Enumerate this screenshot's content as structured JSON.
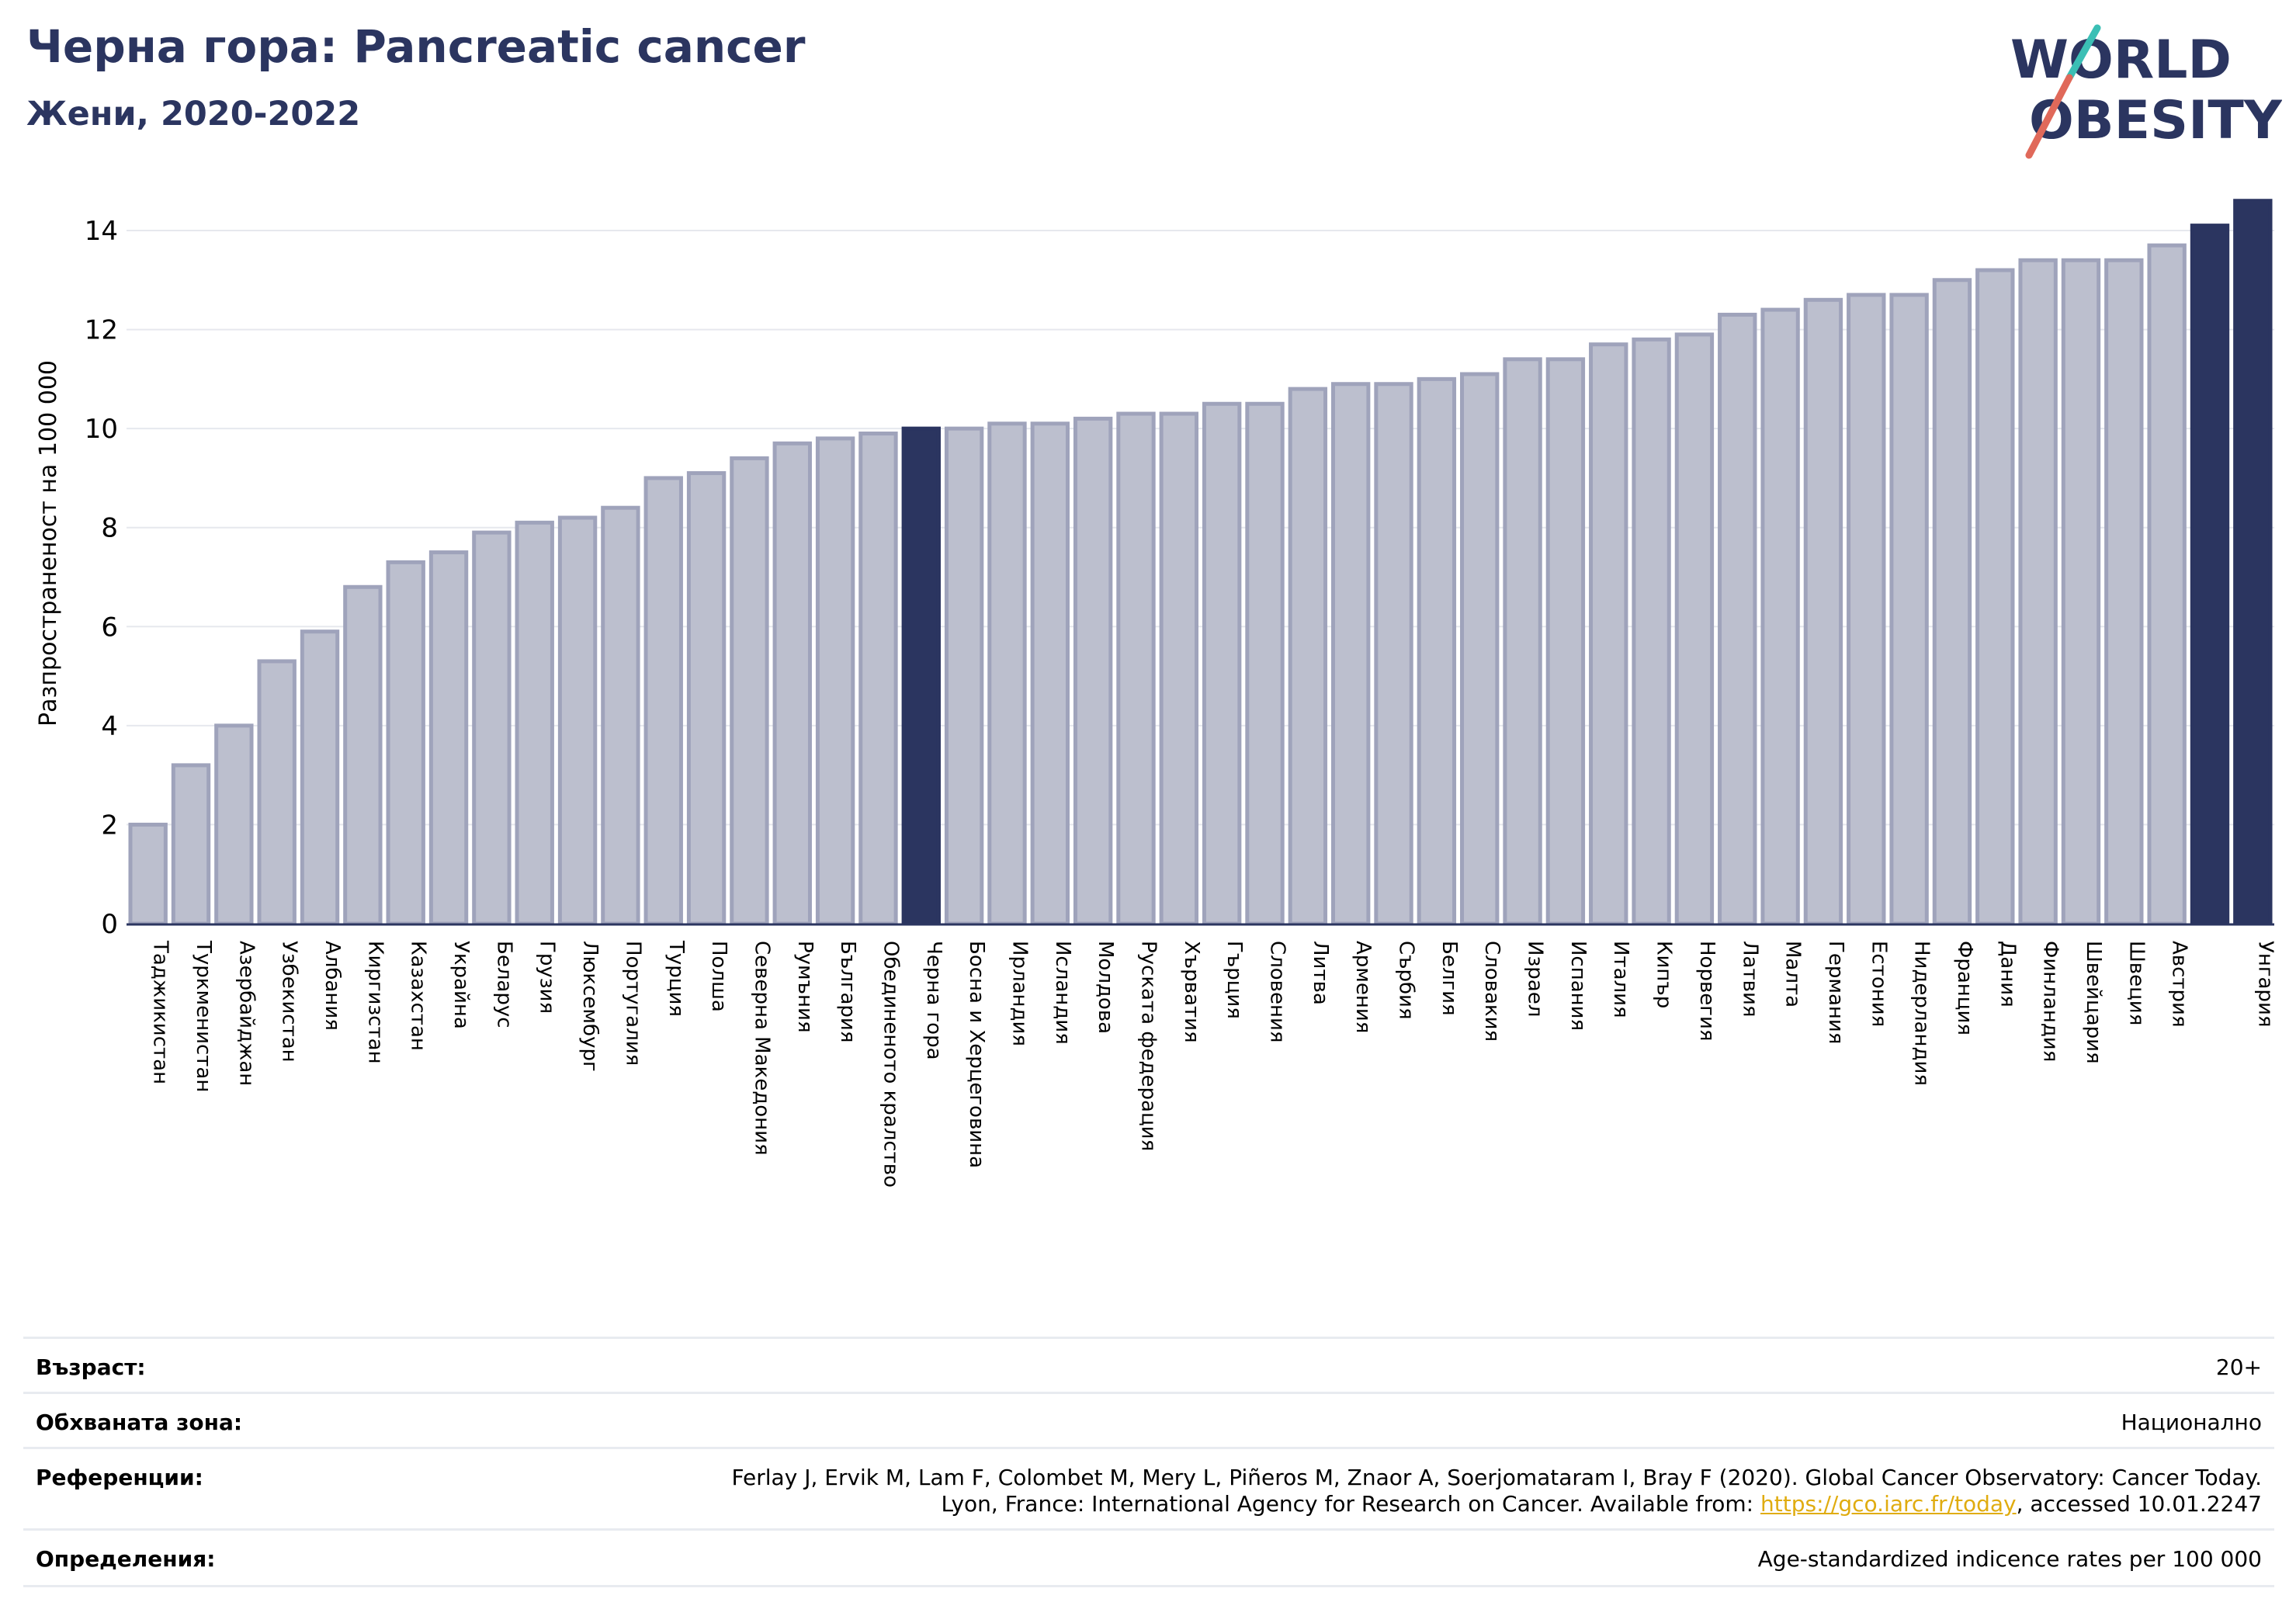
{
  "header": {
    "title": "Черна гора: Pancreatic cancer",
    "subtitle": "Жени, 2020-2022"
  },
  "logo": {
    "line1": "WORLD",
    "line2": "OBESITY"
  },
  "chart_data": {
    "type": "bar",
    "ylabel": "Разпространеност  на 100 000",
    "xlabel": "",
    "ylim": [
      0,
      15
    ],
    "yticks": [
      0,
      2,
      4,
      6,
      8,
      10,
      12,
      14
    ],
    "grid": true,
    "highlighted": [
      "Черна гора",
      "Унгария"
    ],
    "colors": {
      "bar": "#bcbfce",
      "bar_edge": "#9fa3bb",
      "highlight": "#2b3560"
    },
    "categories": [
      "Таджикистан",
      "Туркменистан",
      "Азербайджан",
      "Узбекистан",
      "Албания",
      "Киргизстан",
      "Казахстан",
      "Украйна",
      "Беларус",
      "Грузия",
      "Люксембург",
      "Португалия",
      "Турция",
      "Полша",
      "Северна Македония",
      "Румъния",
      "България",
      "Обединеното кралство",
      "Черна гора",
      "Босна и Херцеговина",
      "Ирландия",
      "Исландия",
      "Молдова",
      "Руската федерация",
      "Хърватия",
      "Гърция",
      "Словения",
      "Литва",
      "Армения",
      "Сърбия",
      "Белгия",
      "Словакия",
      "Израел",
      "Испания",
      "Италия",
      "Кипър",
      "Норвегия",
      "Латвия",
      "Малта",
      "Германия",
      "Естония",
      "Нидерландия",
      "Франция",
      "Дания",
      "Финландия",
      "Швейцария",
      "Швеция",
      "Австрия",
      "",
      "Унгария"
    ],
    "values": [
      2.0,
      3.2,
      4.0,
      5.3,
      5.9,
      6.8,
      7.3,
      7.5,
      7.9,
      8.1,
      8.2,
      8.4,
      9.0,
      9.1,
      9.4,
      9.7,
      9.8,
      9.9,
      10.0,
      10.0,
      10.1,
      10.1,
      10.2,
      10.3,
      10.3,
      10.5,
      10.5,
      10.8,
      10.9,
      10.9,
      11.0,
      11.1,
      11.4,
      11.4,
      11.7,
      11.8,
      11.9,
      12.3,
      12.4,
      12.6,
      12.7,
      12.7,
      13.0,
      13.2,
      13.4,
      13.4,
      13.4,
      13.7,
      14.1,
      14.6
    ]
  },
  "meta": {
    "age_label": "Възраст:",
    "age_value": "20+",
    "area_label": "Обхваната зона:",
    "area_value": "Национално",
    "ref_label": "Референции:",
    "ref_line1": "Ferlay J, Ervik M, Lam F, Colombet M, Mery L, Piñeros M, Znaor A, Soerjomataram I, Bray F (2020). Global Cancer Observatory: Cancer Today.",
    "ref_line2_pre": "Lyon, France: International Agency for Research on Cancer. Available from: ",
    "ref_link": "https://gco.iarc.fr/today",
    "ref_line2_post": ", accessed 10.01.2247",
    "def_label": "Определения:",
    "def_value": "Age-standardized indicence rates per 100 000"
  }
}
